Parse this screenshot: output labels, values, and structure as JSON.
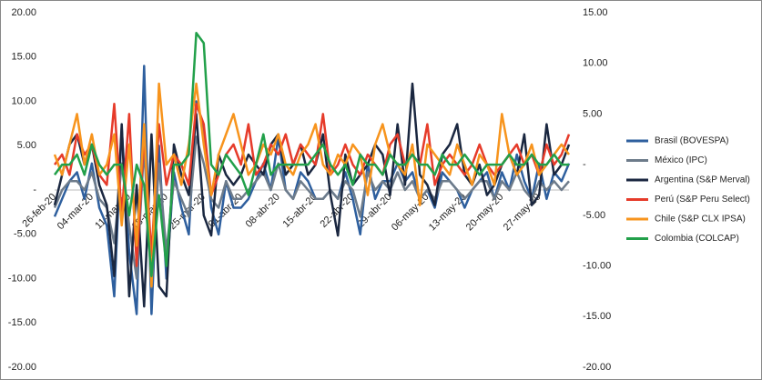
{
  "chart_data": {
    "type": "line",
    "categories": [
      "26-feb-20",
      null,
      null,
      null,
      null,
      "04-mar-20",
      null,
      null,
      null,
      null,
      "11-mar-20",
      null,
      null,
      null,
      null,
      "18-mar-20",
      null,
      null,
      null,
      null,
      "25-mar-20",
      null,
      null,
      null,
      null,
      "01-abr-20",
      null,
      null,
      null,
      null,
      "08-abr-20",
      null,
      null,
      null,
      null,
      "15-abr-20",
      null,
      null,
      null,
      null,
      "22-abr-20",
      null,
      null,
      null,
      null,
      "29-abr-20",
      null,
      null,
      null,
      null,
      "06-may-20",
      null,
      null,
      null,
      null,
      "13-may-20",
      null,
      null,
      null,
      null,
      "20-may-20",
      null,
      null,
      null,
      null,
      "27-may-20",
      null,
      null,
      null,
      null
    ],
    "ylim": [
      -20,
      20
    ],
    "yticks": [
      {
        "value": -20,
        "label": "-20.00"
      },
      {
        "value": -15,
        "label": "-15.00"
      },
      {
        "value": -10,
        "label": "-10.00"
      },
      {
        "value": -5,
        "label": "-5.00"
      },
      {
        "value": 0,
        "label": "-"
      },
      {
        "value": 5,
        "label": "5.00"
      },
      {
        "value": 10,
        "label": "10.00"
      },
      {
        "value": 15,
        "label": "15.00"
      },
      {
        "value": 20,
        "label": "20.00"
      }
    ],
    "y2lim": [
      -20,
      15
    ],
    "y2ticks": [
      {
        "value": -20,
        "label": "-20.00"
      },
      {
        "value": -15,
        "label": "-15.00"
      },
      {
        "value": -10,
        "label": "-10.00"
      },
      {
        "value": -5,
        "label": "-5.00"
      },
      {
        "value": 0,
        "label": "-"
      },
      {
        "value": 5,
        "label": "5.00"
      },
      {
        "value": 10,
        "label": "10.00"
      },
      {
        "value": 15,
        "label": "15.00"
      }
    ],
    "legend": "right",
    "series": [
      {
        "name": "Brasil (BOVESPA)",
        "color": "#2e5f9e",
        "values": [
          -3,
          -1,
          1,
          2,
          -1,
          3,
          -2,
          -4,
          -12,
          7,
          -7,
          -14,
          14,
          -14,
          5,
          -10,
          2,
          -2,
          -5,
          10,
          7,
          -2,
          -5,
          1,
          -2,
          -2,
          -1,
          1,
          3,
          0,
          6,
          0,
          -1,
          2,
          1,
          -1,
          -1,
          0,
          -1,
          2,
          -1,
          -5,
          3,
          -1,
          1,
          1,
          3,
          1,
          2,
          -1,
          0,
          -2,
          2,
          1,
          0,
          -2,
          0,
          1,
          2,
          -1,
          2,
          0,
          4,
          1,
          -1,
          3,
          -1,
          2,
          1,
          3
        ]
      },
      {
        "name": "México (IPC)",
        "color": "#6d7b8a",
        "values": [
          -2,
          0,
          1,
          1,
          0,
          2,
          -1,
          -2,
          -6,
          3,
          -4,
          -10,
          5,
          -11,
          3,
          -7,
          1,
          -1,
          -3,
          6,
          3,
          -1,
          -2,
          1,
          -1,
          -1,
          0,
          1,
          2,
          0,
          3,
          0,
          -1,
          1,
          0,
          -1,
          -1,
          0,
          -1,
          1,
          0,
          -3,
          2,
          0,
          1,
          0,
          2,
          0,
          1,
          -1,
          0,
          -1,
          1,
          1,
          0,
          -1,
          0,
          1,
          1,
          -1,
          1,
          0,
          2,
          0,
          -1,
          1,
          0,
          1,
          0,
          1
        ]
      },
      {
        "name": "Argentina (S&P Merval)",
        "color": "#1a2740",
        "axis": "y2",
        "values": [
          -4,
          -1,
          2,
          3,
          0,
          2,
          -2,
          -4,
          -11,
          4,
          -13,
          -2,
          -14,
          3,
          -12,
          -13,
          2,
          -1,
          -3,
          5,
          -5,
          -7,
          1,
          -1,
          -2,
          -1,
          1,
          0,
          -1,
          2,
          3,
          -1,
          0,
          2,
          -1,
          0,
          3,
          -3,
          -7,
          1,
          -2,
          -1,
          0,
          2,
          1,
          -3,
          4,
          -2,
          8,
          -1,
          -2,
          -4,
          1,
          2,
          4,
          -1,
          -2,
          0,
          -3,
          -2,
          0,
          1,
          -1,
          3,
          -4,
          -3,
          4,
          -1,
          0,
          2
        ]
      },
      {
        "name": "Perú (S&P Peru Select)",
        "color": "#e63b2a",
        "axis": "y2",
        "values": [
          0,
          1,
          -1,
          3,
          1,
          2,
          -1,
          -2,
          6,
          -5,
          5,
          -10,
          3,
          -9,
          4,
          -2,
          1,
          0,
          -2,
          6,
          4,
          -3,
          -1,
          1,
          2,
          0,
          4,
          -1,
          0,
          2,
          1,
          3,
          0,
          2,
          1,
          0,
          5,
          -1,
          0,
          2,
          0,
          -1,
          1,
          0,
          -1,
          2,
          3,
          0,
          1,
          0,
          4,
          -2,
          0,
          1,
          0,
          -1,
          0,
          2,
          0,
          -1,
          0,
          1,
          2,
          0,
          1,
          -1,
          2,
          0,
          1,
          3
        ]
      },
      {
        "name": "Chile (S&P CLX IPSA)",
        "color": "#f7941d",
        "axis": "y2",
        "values": [
          1,
          -1,
          2,
          5,
          0,
          3,
          -1,
          0,
          3,
          -6,
          2,
          -8,
          4,
          -12,
          8,
          0,
          1,
          -2,
          2,
          8,
          2,
          -3,
          1,
          3,
          5,
          2,
          -1,
          0,
          2,
          1,
          3,
          0,
          -1,
          1,
          2,
          4,
          0,
          -1,
          1,
          0,
          2,
          1,
          -3,
          2,
          4,
          1,
          0,
          -1,
          2,
          -4,
          2,
          1,
          0,
          -1,
          2,
          0,
          -2,
          1,
          0,
          -2,
          5,
          1,
          -1,
          0,
          2,
          -1,
          0,
          1,
          2,
          1
        ]
      },
      {
        "name": "Colombia (COLCAP)",
        "color": "#22a04a",
        "axis": "y2",
        "values": [
          -1,
          0,
          0,
          1,
          -1,
          2,
          0,
          -1,
          0,
          0,
          -5,
          0,
          -2,
          -11,
          -3,
          -10,
          0,
          0,
          1,
          13,
          12,
          0,
          -1,
          1,
          0,
          -1,
          -3,
          0,
          3,
          -1,
          0,
          0,
          0,
          0,
          0,
          1,
          2,
          0,
          -1,
          0,
          -2,
          1,
          0,
          0,
          -1,
          1,
          0,
          0,
          1,
          0,
          0,
          -1,
          1,
          0,
          0,
          1,
          0,
          -1,
          0,
          0,
          0,
          1,
          0,
          0,
          1,
          0,
          0,
          1,
          0,
          0
        ]
      }
    ]
  }
}
